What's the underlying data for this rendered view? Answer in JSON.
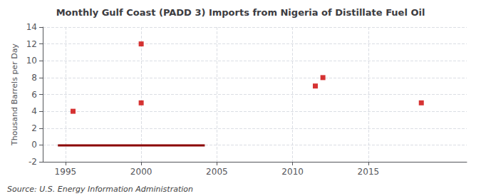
{
  "chart_data": {
    "type": "scatter",
    "title": "Monthly Gulf Coast (PADD 3) Imports from Nigeria of Distillate Fuel Oil",
    "ylabel": "Thousand Barrels per Day",
    "annotations": [
      "Source: U.S. Energy Information Administration"
    ],
    "series": [
      {
        "type": "scatter",
        "color": "#cc0000",
        "marker": "square",
        "x": [
          1995.5,
          2000.0,
          2000.0,
          2011.5,
          2012.0,
          2018.5
        ],
        "values": [
          4.0,
          5.0,
          12.0,
          7.0,
          8.0,
          5.0
        ]
      },
      {
        "type": "line",
        "color": "#8b0000",
        "x": [
          1994.5,
          2004.2
        ],
        "values": [
          -0.05,
          -0.05
        ]
      }
    ],
    "xlim": [
      1993.5,
      2021.5
    ],
    "xticks": [
      1995,
      2000,
      2005,
      2010,
      2015
    ],
    "ylim": [
      -2,
      14
    ],
    "yticks": [
      -2,
      0,
      2,
      4,
      6,
      8,
      10,
      12,
      14
    ],
    "grid": true
  }
}
